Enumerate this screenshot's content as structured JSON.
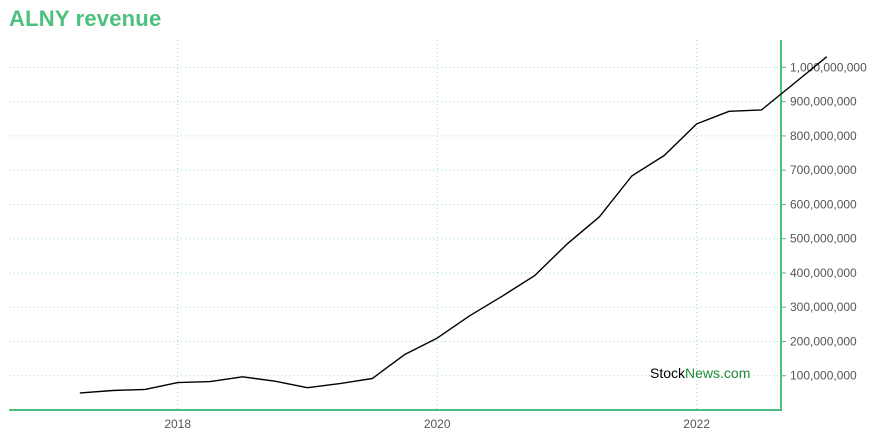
{
  "title": "ALNY revenue",
  "watermark": {
    "part1": "Stock",
    "part2": "News.com"
  },
  "colors": {
    "title": "#4cc07f",
    "axis": "#4cc07f",
    "grid": "#9edfc0",
    "line": "#000000",
    "tick_text": "#555555",
    "watermark_news": "#1f8a3a"
  },
  "chart_data": {
    "type": "line",
    "title": "ALNY revenue",
    "xlabel": "",
    "ylabel": "",
    "x_tick_labels": [
      "2018",
      "2020",
      "2022"
    ],
    "x_ticks": [
      2018.0,
      2020.0,
      2022.0
    ],
    "y_ticks": [
      100000000,
      200000000,
      300000000,
      400000000,
      500000000,
      600000000,
      700000000,
      800000000,
      900000000,
      1000000000
    ],
    "y_tick_labels": [
      "100,000,000",
      "200,000,000",
      "300,000,000",
      "400,000,000",
      "500,000,000",
      "600,000,000",
      "700,000,000",
      "800,000,000",
      "900,000,000",
      "1,000,000,000"
    ],
    "xlim": [
      2016.7,
      2022.65
    ],
    "ylim": [
      0,
      1080000000
    ],
    "grid": true,
    "y_axis_side": "right",
    "series": [
      {
        "x": [
          2017.25,
          2017.5,
          2017.75,
          2018.0,
          2018.25,
          2018.5,
          2018.75,
          2019.0,
          2019.25,
          2019.5,
          2019.75,
          2020.0,
          2020.25,
          2020.5,
          2020.75,
          2021.0,
          2021.25,
          2021.5,
          2021.75,
          2022.0,
          2022.25,
          2022.5,
          2022.75,
          2023.0
        ],
        "values": [
          50000000,
          57000000,
          60000000,
          80000000,
          83000000,
          97000000,
          84000000,
          65000000,
          77000000,
          92000000,
          162000000,
          210000000,
          275000000,
          332000000,
          392000000,
          484000000,
          564000000,
          683000000,
          743000000,
          835000000,
          872000000,
          876000000,
          953000000,
          1030000000
        ]
      }
    ]
  }
}
